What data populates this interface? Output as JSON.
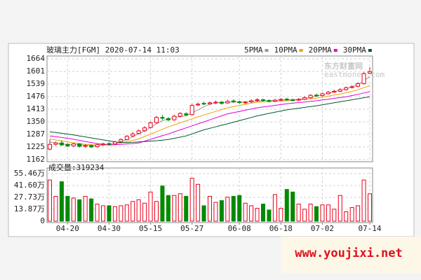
{
  "chart_data": [
    {
      "type": "candlestick",
      "title": "玻璃主力[FGM] 2020-07-14 11:03",
      "up_color": "#e8001c",
      "down_color": "#008a00",
      "open": [
        1214,
        1238,
        1245,
        1238,
        1230,
        1240,
        1228,
        1232,
        1226,
        1236,
        1242,
        1240,
        1252,
        1262,
        1280,
        1292,
        1306,
        1322,
        1346,
        1372,
        1366,
        1360,
        1378,
        1390,
        1386,
        1434,
        1442,
        1440,
        1444,
        1448,
        1444,
        1454,
        1450,
        1446,
        1450,
        1456,
        1460,
        1456,
        1452,
        1458,
        1463,
        1460,
        1458,
        1462,
        1470,
        1483,
        1481,
        1490,
        1498,
        1502,
        1510,
        1521,
        1527,
        1540,
        1592
      ],
      "high": [
        1262,
        1252,
        1258,
        1244,
        1246,
        1244,
        1240,
        1238,
        1242,
        1246,
        1248,
        1256,
        1268,
        1284,
        1298,
        1312,
        1328,
        1352,
        1380,
        1384,
        1374,
        1386,
        1398,
        1398,
        1440,
        1446,
        1450,
        1452,
        1456,
        1454,
        1460,
        1462,
        1456,
        1454,
        1462,
        1468,
        1466,
        1462,
        1464,
        1468,
        1470,
        1466,
        1468,
        1478,
        1488,
        1490,
        1496,
        1504,
        1510,
        1518,
        1526,
        1532,
        1548,
        1598,
        1622
      ],
      "low": [
        1208,
        1232,
        1230,
        1224,
        1226,
        1222,
        1222,
        1220,
        1222,
        1230,
        1232,
        1236,
        1248,
        1258,
        1274,
        1288,
        1300,
        1318,
        1342,
        1360,
        1352,
        1356,
        1372,
        1378,
        1382,
        1428,
        1434,
        1436,
        1438,
        1436,
        1440,
        1444,
        1440,
        1440,
        1444,
        1450,
        1450,
        1446,
        1448,
        1452,
        1454,
        1452,
        1454,
        1458,
        1466,
        1474,
        1476,
        1486,
        1494,
        1498,
        1506,
        1516,
        1522,
        1536,
        1588
      ],
      "close": [
        1238,
        1245,
        1235,
        1230,
        1240,
        1228,
        1232,
        1225,
        1236,
        1240,
        1238,
        1250,
        1262,
        1278,
        1290,
        1305,
        1320,
        1345,
        1372,
        1368,
        1360,
        1378,
        1392,
        1385,
        1432,
        1438,
        1440,
        1445,
        1448,
        1442,
        1452,
        1450,
        1446,
        1448,
        1455,
        1460,
        1457,
        1452,
        1458,
        1462,
        1460,
        1458,
        1462,
        1470,
        1482,
        1480,
        1490,
        1498,
        1502,
        1510,
        1520,
        1525,
        1540,
        1590,
        1600
      ],
      "series": [
        {
          "name": "5PMA",
          "color": "#999999",
          "values": [
            1250,
            1245,
            1240,
            1237,
            1238,
            1236,
            1233,
            1232,
            1232,
            1235,
            1237,
            1242,
            1250,
            1262,
            1276,
            1290,
            1305,
            1322,
            1340,
            1356,
            1365,
            1372,
            1376,
            1380,
            1395,
            1410,
            1425,
            1437,
            1445,
            1446,
            1447,
            1449,
            1449,
            1449,
            1450,
            1453,
            1455,
            1456,
            1458,
            1459,
            1459,
            1460,
            1462,
            1466,
            1472,
            1478,
            1485,
            1492,
            1500,
            1508,
            1516,
            1524,
            1535,
            1555,
            1575
          ]
        },
        {
          "name": "10PMA",
          "color": "#f0a000",
          "values": [
            1265,
            1260,
            1255,
            1250,
            1246,
            1242,
            1238,
            1236,
            1235,
            1236,
            1238,
            1241,
            1245,
            1252,
            1258,
            1265,
            1277,
            1289,
            1301,
            1313,
            1325,
            1335,
            1345,
            1355,
            1365,
            1375,
            1384,
            1393,
            1402,
            1411,
            1420,
            1426,
            1432,
            1437,
            1443,
            1448,
            1450,
            1451,
            1452,
            1454,
            1455,
            1457,
            1460,
            1462,
            1465,
            1468,
            1473,
            1478,
            1484,
            1489,
            1495,
            1502,
            1510,
            1520,
            1530
          ]
        },
        {
          "name": "20PMA",
          "color": "#e000e0",
          "values": [
            1280,
            1276,
            1272,
            1268,
            1263,
            1258,
            1252,
            1247,
            1242,
            1238,
            1235,
            1236,
            1238,
            1240,
            1242,
            1245,
            1254,
            1263,
            1272,
            1281,
            1290,
            1300,
            1310,
            1320,
            1330,
            1340,
            1350,
            1360,
            1370,
            1380,
            1390,
            1396,
            1402,
            1408,
            1414,
            1420,
            1424,
            1428,
            1432,
            1436,
            1440,
            1443,
            1446,
            1449,
            1452,
            1455,
            1459,
            1463,
            1467,
            1471,
            1475,
            1481,
            1487,
            1494,
            1500
          ]
        },
        {
          "name": "30PMA",
          "color": "#005a2a",
          "values": [
            1300,
            1297,
            1293,
            1289,
            1285,
            1280,
            1275,
            1270,
            1265,
            1260,
            1255,
            1250,
            1247,
            1247,
            1248,
            1250,
            1252,
            1254,
            1256,
            1259,
            1262,
            1268,
            1274,
            1280,
            1290,
            1300,
            1310,
            1318,
            1325,
            1333,
            1340,
            1348,
            1356,
            1364,
            1372,
            1380,
            1386,
            1392,
            1398,
            1404,
            1410,
            1414,
            1418,
            1422,
            1426,
            1430,
            1435,
            1440,
            1445,
            1450,
            1455,
            1460,
            1465,
            1470,
            1475
          ]
        }
      ],
      "ylim": [
        1162,
        1664
      ],
      "yticks": [
        1162,
        1225,
        1287,
        1350,
        1413,
        1476,
        1539,
        1601,
        1664
      ],
      "grid": true
    },
    {
      "type": "bar",
      "title": "成交量:319234",
      "categories": [
        null,
        null,
        null,
        "04-20",
        null,
        null,
        null,
        null,
        null,
        null,
        "04-30",
        null,
        null,
        null,
        null,
        null,
        null,
        "05-15",
        null,
        null,
        null,
        null,
        null,
        null,
        "05-27",
        null,
        null,
        null,
        null,
        null,
        null,
        null,
        "06-08",
        null,
        null,
        null,
        null,
        null,
        null,
        "06-18",
        null,
        null,
        null,
        null,
        null,
        null,
        "07-02",
        null,
        null,
        null,
        null,
        null,
        null,
        null,
        "07-14"
      ],
      "values": [
        480000,
        290000,
        460000,
        290000,
        270000,
        250000,
        290000,
        260000,
        200000,
        180000,
        180000,
        170000,
        180000,
        190000,
        230000,
        250000,
        210000,
        340000,
        230000,
        410000,
        300000,
        300000,
        320000,
        290000,
        500000,
        430000,
        180000,
        290000,
        220000,
        240000,
        280000,
        290000,
        300000,
        210000,
        180000,
        150000,
        200000,
        130000,
        310000,
        150000,
        370000,
        340000,
        200000,
        140000,
        200000,
        170000,
        190000,
        190000,
        140000,
        300000,
        110000,
        160000,
        180000,
        480000,
        319234
      ],
      "ylim": [
        0,
        554600
      ],
      "yticks": [
        0,
        {
          "value": 138700,
          "label": "13.87万"
        },
        {
          "value": 277300,
          "label": "27.73万"
        },
        {
          "value": 416000,
          "label": "41.60万"
        },
        {
          "value": 554600,
          "label": "55.46万"
        }
      ],
      "grid": true
    }
  ],
  "watermarks": {
    "logo": "东方财富网",
    "logo_sub": "eastmoney.com",
    "site": "www.youjixi.net"
  }
}
